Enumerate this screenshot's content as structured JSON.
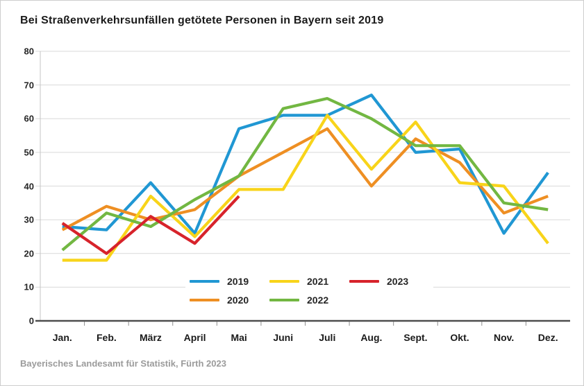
{
  "title": "Bei Straßenverkehrsunfällen getötete Personen in Bayern seit 2019",
  "source": "Bayerisches Landesamt für Statistik, Fürth 2023",
  "chart_data": {
    "type": "line",
    "title": "Bei Straßenverkehrsunfällen getötete Personen in Bayern seit 2019",
    "categories": [
      "Jan.",
      "Feb.",
      "März",
      "April",
      "Mai",
      "Juni",
      "Juli",
      "Aug.",
      "Sept.",
      "Okt.",
      "Nov.",
      "Dez."
    ],
    "series": [
      {
        "name": "2019",
        "color": "#2097d3",
        "values": [
          28,
          27,
          41,
          26,
          57,
          61,
          61,
          67,
          50,
          51,
          26,
          44
        ]
      },
      {
        "name": "2020",
        "color": "#ee8f23",
        "values": [
          27,
          34,
          30,
          33,
          43,
          50,
          57,
          40,
          54,
          47,
          32,
          37
        ]
      },
      {
        "name": "2021",
        "color": "#f8d41a",
        "values": [
          18,
          18,
          37,
          25,
          39,
          39,
          61,
          45,
          59,
          41,
          40,
          23
        ]
      },
      {
        "name": "2022",
        "color": "#72b742",
        "values": [
          21,
          32,
          28,
          36,
          43,
          63,
          66,
          60,
          52,
          52,
          35,
          33
        ]
      },
      {
        "name": "2023",
        "color": "#d7232b",
        "values": [
          29,
          20,
          31,
          23,
          37
        ]
      }
    ],
    "ylim": [
      0,
      80
    ],
    "y_ticks": [
      0,
      10,
      20,
      30,
      40,
      50,
      60,
      70,
      80
    ],
    "xlabel": "",
    "ylabel": "",
    "grid": true,
    "legend_position": "bottom-center-inside",
    "legend_rows": [
      [
        "2019",
        "2021",
        "2023"
      ],
      [
        "2020",
        "2022"
      ]
    ]
  },
  "colors": {
    "gridline": "#d9d9d9",
    "axis_spine": "#c4c4c4",
    "zero_line": "#4d4d4d",
    "tick_mark": "#8f8f8f",
    "title_text": "#1a1a1a",
    "label_text": "#262626",
    "source_text": "#9b9b9b",
    "background": "#ffffff",
    "border": "#cdcdcd"
  }
}
